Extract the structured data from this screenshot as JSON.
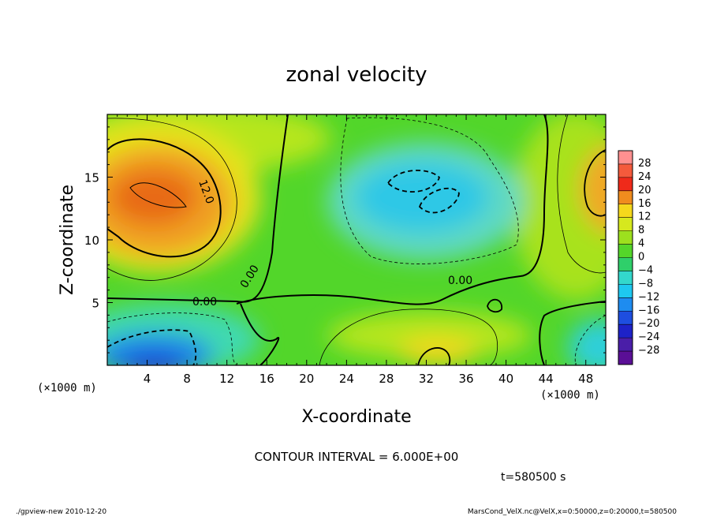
{
  "chart_data": {
    "type": "heatmap",
    "title": "zonal velocity",
    "xlabel": "X-coordinate",
    "ylabel": "Z-coordinate",
    "x_unit": "(×1000 m)",
    "y_unit": "(×1000 m)",
    "xlim": [
      0,
      50
    ],
    "ylim": [
      0,
      20
    ],
    "x_ticks": [
      4,
      8,
      12,
      16,
      20,
      24,
      28,
      32,
      36,
      40,
      44,
      48
    ],
    "y_ticks": [
      5,
      10,
      15
    ],
    "colorbar": {
      "levels": [
        28,
        24,
        20,
        16,
        12,
        8,
        4,
        0,
        -4,
        -8,
        -12,
        -16,
        -20,
        -24,
        -28
      ],
      "labels": [
        "28",
        "24",
        "20",
        "16",
        "12",
        "8",
        "4",
        "0",
        "−4",
        "−8",
        "−12",
        "−16",
        "−20",
        "−24",
        "−28"
      ]
    },
    "contour_labels": [
      "12.0",
      "0.00",
      "0.00",
      "0.00"
    ],
    "contour_interval": "CONTOUR INTERVAL = 6.000E+00",
    "time": "t=580500 s",
    "features": [
      {
        "x": 5,
        "z": 13.5,
        "value": 20,
        "kind": "max"
      },
      {
        "x": 31,
        "z": 13.5,
        "value": -10,
        "kind": "min"
      },
      {
        "x": 5,
        "z": 1.5,
        "value": -18,
        "kind": "min"
      },
      {
        "x": 33,
        "z": 1.5,
        "value": 12,
        "kind": "max"
      },
      {
        "x": 49,
        "z": 14,
        "value": 16,
        "kind": "max"
      },
      {
        "x": 49,
        "z": 1.5,
        "value": -12,
        "kind": "min"
      }
    ]
  },
  "footer": {
    "left": "./gpview-new  2010-12-20",
    "right": "MarsCond_VelX.nc@VelX,x=0:50000,z=0:20000,t=580500"
  }
}
